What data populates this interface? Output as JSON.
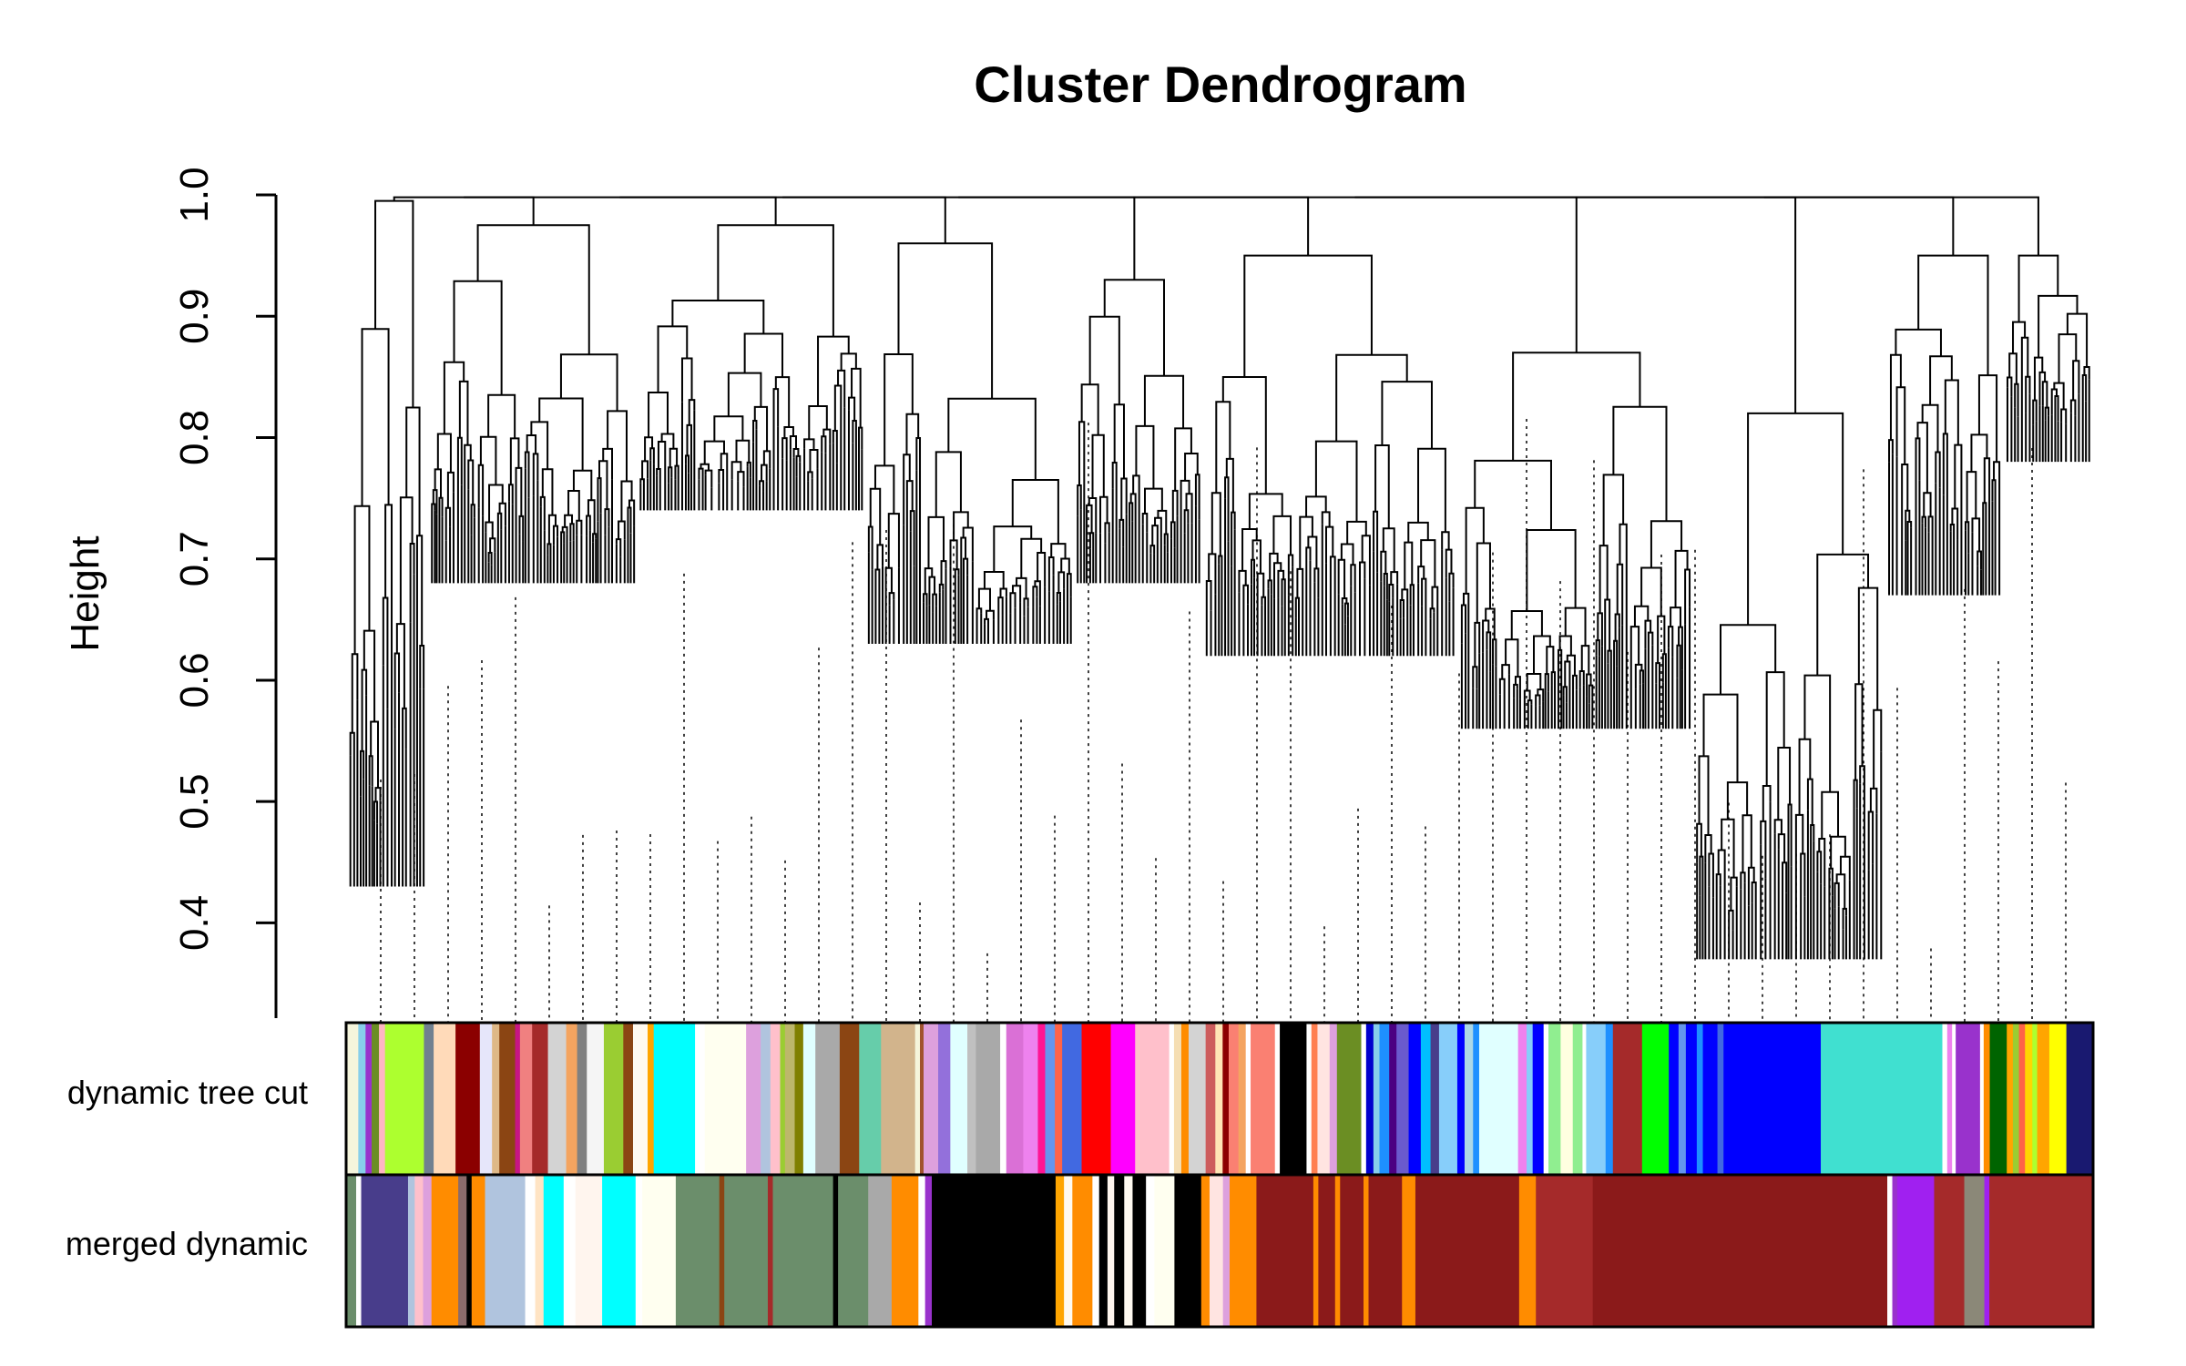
{
  "chart_data": {
    "type": "dendrogram",
    "title": "Cluster Dendrogram",
    "ylabel": "Height",
    "xlabel": "",
    "ylim": [
      0.32,
      1.0
    ],
    "yticks": [
      0.4,
      0.5,
      0.6,
      0.7,
      0.8,
      0.9,
      1.0
    ],
    "ytick_labels": [
      "0.4",
      "0.5",
      "0.6",
      "0.7",
      "0.8",
      "0.9",
      "1.0"
    ],
    "color_rows": [
      {
        "label": "dynamic tree cut",
        "segments": [
          {
            "color": "#f5f5dc",
            "w": 1.0
          },
          {
            "color": "#87ceeb",
            "w": 0.6
          },
          {
            "color": "#9932cc",
            "w": 0.5
          },
          {
            "color": "#6b8e23",
            "w": 0.6
          },
          {
            "color": "#ffb6c1",
            "w": 0.5
          },
          {
            "color": "#adff2f",
            "w": 3.2
          },
          {
            "color": "#708090",
            "w": 0.8
          },
          {
            "color": "#ffdab9",
            "w": 1.8
          },
          {
            "color": "#8b0000",
            "w": 2.0
          },
          {
            "color": "#e6e6fa",
            "w": 1.0
          },
          {
            "color": "#deb887",
            "w": 0.6
          },
          {
            "color": "#8b4513",
            "w": 1.3
          },
          {
            "color": "#c71585",
            "w": 0.4
          },
          {
            "color": "#f08080",
            "w": 1.0
          },
          {
            "color": "#a52a2a",
            "w": 1.3
          },
          {
            "color": "#d3d3d3",
            "w": 1.5
          },
          {
            "color": "#f4a460",
            "w": 0.9
          },
          {
            "color": "#808080",
            "w": 0.8
          },
          {
            "color": "#f5f5f5",
            "w": 1.4
          },
          {
            "color": "#9acd32",
            "w": 1.6
          },
          {
            "color": "#8b4513",
            "w": 0.8
          },
          {
            "color": "#fffaf0",
            "w": 1.2
          },
          {
            "color": "#ffa500",
            "w": 0.5
          },
          {
            "color": "#00ffff",
            "w": 3.4
          },
          {
            "color": "#ffffff",
            "w": 0.8
          },
          {
            "color": "#fffff0",
            "w": 3.4
          },
          {
            "color": "#dda0dd",
            "w": 1.2
          },
          {
            "color": "#b0c4de",
            "w": 0.8
          },
          {
            "color": "#ffc0cb",
            "w": 0.8
          },
          {
            "color": "#9acd32",
            "w": 0.4
          },
          {
            "color": "#bdb76b",
            "w": 0.8
          },
          {
            "color": "#808000",
            "w": 0.7
          },
          {
            "color": "#e0ffff",
            "w": 1.0
          },
          {
            "color": "#a9a9a9",
            "w": 2.0
          },
          {
            "color": "#8b4513",
            "w": 1.6
          },
          {
            "color": "#66cdaa",
            "w": 1.8
          },
          {
            "color": "#d2b48c",
            "w": 2.8
          },
          {
            "color": "#f5f5dc",
            "w": 0.4
          },
          {
            "color": "#a0522d",
            "w": 0.3
          },
          {
            "color": "#dda0dd",
            "w": 1.2
          },
          {
            "color": "#9370db",
            "w": 1.0
          },
          {
            "color": "#e0ffff",
            "w": 1.4
          },
          {
            "color": "#c0c0c0",
            "w": 0.7
          },
          {
            "color": "#a9a9a9",
            "w": 2.0
          },
          {
            "color": "#ffffff",
            "w": 0.5
          },
          {
            "color": "#da70d6",
            "w": 1.4
          },
          {
            "color": "#ee82ee",
            "w": 1.2
          },
          {
            "color": "#ff1493",
            "w": 0.6
          },
          {
            "color": "#6495ed",
            "w": 0.8
          },
          {
            "color": "#ff6347",
            "w": 0.6
          },
          {
            "color": "#4169e1",
            "w": 1.6
          },
          {
            "color": "#ff0000",
            "w": 2.4
          },
          {
            "color": "#ff00ff",
            "w": 2.0
          },
          {
            "color": "#ffc0cb",
            "w": 2.8
          },
          {
            "color": "#ffffff",
            "w": 0.4
          },
          {
            "color": "#f5deb3",
            "w": 0.6
          },
          {
            "color": "#ff8c00",
            "w": 0.6
          },
          {
            "color": "#d3d3d3",
            "w": 1.4
          },
          {
            "color": "#cd5c5c",
            "w": 0.8
          },
          {
            "color": "#ffe4b5",
            "w": 0.6
          },
          {
            "color": "#8b0000",
            "w": 0.5
          },
          {
            "color": "#fa8072",
            "w": 0.8
          },
          {
            "color": "#f4a460",
            "w": 0.6
          },
          {
            "color": "#ffffff",
            "w": 0.4
          },
          {
            "color": "#fa8072",
            "w": 2.0
          },
          {
            "color": "#ffffff",
            "w": 0.4
          },
          {
            "color": "#000000",
            "w": 2.2
          },
          {
            "color": "#ffffff",
            "w": 0.4
          },
          {
            "color": "#ff7f50",
            "w": 0.5
          },
          {
            "color": "#ffe4e1",
            "w": 1.0
          },
          {
            "color": "#dda0dd",
            "w": 0.6
          },
          {
            "color": "#6b8e23",
            "w": 2.0
          },
          {
            "color": "#ffffff",
            "w": 0.4
          },
          {
            "color": "#0000cd",
            "w": 0.6
          },
          {
            "color": "#87ceeb",
            "w": 0.5
          },
          {
            "color": "#1e90ff",
            "w": 0.8
          },
          {
            "color": "#4b0082",
            "w": 0.6
          },
          {
            "color": "#6a5acd",
            "w": 1.0
          },
          {
            "color": "#0000ff",
            "w": 1.0
          },
          {
            "color": "#00bfff",
            "w": 0.8
          },
          {
            "color": "#483d8b",
            "w": 0.7
          },
          {
            "color": "#87cefa",
            "w": 1.5
          },
          {
            "color": "#0000ff",
            "w": 0.6
          },
          {
            "color": "#add8e6",
            "w": 0.7
          },
          {
            "color": "#1e90ff",
            "w": 0.5
          },
          {
            "color": "#e0ffff",
            "w": 3.2
          },
          {
            "color": "#ee82ee",
            "w": 0.7
          },
          {
            "color": "#87cefa",
            "w": 0.5
          },
          {
            "color": "#0000ff",
            "w": 0.9
          },
          {
            "color": "#ffffff",
            "w": 0.4
          },
          {
            "color": "#90ee90",
            "w": 1.0
          },
          {
            "color": "#ffffe0",
            "w": 1.0
          },
          {
            "color": "#90ee90",
            "w": 0.8
          },
          {
            "color": "#ffffff",
            "w": 0.3
          },
          {
            "color": "#87cefa",
            "w": 1.6
          },
          {
            "color": "#1e90ff",
            "w": 0.6
          },
          {
            "color": "#a52a2a",
            "w": 2.4
          },
          {
            "color": "#00ff00",
            "w": 2.2
          },
          {
            "color": "#0000ff",
            "w": 0.8
          },
          {
            "color": "#6495ed",
            "w": 0.6
          },
          {
            "color": "#0000ff",
            "w": 0.9
          },
          {
            "color": "#1e90ff",
            "w": 0.5
          },
          {
            "color": "#0000ff",
            "w": 1.2
          },
          {
            "color": "#4169e1",
            "w": 0.5
          },
          {
            "color": "#0000ff",
            "w": 8.0
          },
          {
            "color": "#40e0d0",
            "w": 10.0
          },
          {
            "color": "#ffffff",
            "w": 0.4
          },
          {
            "color": "#ee82ee",
            "w": 0.4
          },
          {
            "color": "#ffffff",
            "w": 0.3
          },
          {
            "color": "#9932cc",
            "w": 2.0
          },
          {
            "color": "#ffffff",
            "w": 0.3
          },
          {
            "color": "#ff8c00",
            "w": 0.5
          },
          {
            "color": "#006400",
            "w": 1.4
          },
          {
            "color": "#ffa500",
            "w": 0.5
          },
          {
            "color": "#9acd32",
            "w": 0.5
          },
          {
            "color": "#ff6347",
            "w": 0.5
          },
          {
            "color": "#ffd700",
            "w": 0.6
          },
          {
            "color": "#adff2f",
            "w": 0.4
          },
          {
            "color": "#ffa500",
            "w": 1.0
          },
          {
            "color": "#ffff00",
            "w": 1.4
          },
          {
            "color": "#191970",
            "w": 2.2
          }
        ]
      },
      {
        "label": "merged dynamic",
        "segments": [
          {
            "color": "#6b8e6b",
            "w": 0.6
          },
          {
            "color": "#ffffff",
            "w": 0.3
          },
          {
            "color": "#483d8b",
            "w": 2.8
          },
          {
            "color": "#b0c4de",
            "w": 0.4
          },
          {
            "color": "#ffc0cb",
            "w": 0.5
          },
          {
            "color": "#dda0dd",
            "w": 0.5
          },
          {
            "color": "#ff8c00",
            "w": 1.6
          },
          {
            "color": "#8b6b6b",
            "w": 0.5
          },
          {
            "color": "#000000",
            "w": 0.3
          },
          {
            "color": "#ff8c00",
            "w": 0.8
          },
          {
            "color": "#b0c4de",
            "w": 0.6
          },
          {
            "color": "#b0c4de",
            "w": 1.8
          },
          {
            "color": "#ffffff",
            "w": 0.6
          },
          {
            "color": "#ffe4c4",
            "w": 0.5
          },
          {
            "color": "#00ffff",
            "w": 1.2
          },
          {
            "color": "#ffffff",
            "w": 0.7
          },
          {
            "color": "#fff5ee",
            "w": 1.6
          },
          {
            "color": "#00ffff",
            "w": 2.0
          },
          {
            "color": "#ffffff",
            "w": 0.4
          },
          {
            "color": "#fffff0",
            "w": 2.0
          },
          {
            "color": "#6b8e6b",
            "w": 2.6
          },
          {
            "color": "#8b4513",
            "w": 0.3
          },
          {
            "color": "#6b8e6b",
            "w": 2.6
          },
          {
            "color": "#a52a2a",
            "w": 0.3
          },
          {
            "color": "#6b8e6b",
            "w": 3.6
          },
          {
            "color": "#000000",
            "w": 0.3
          },
          {
            "color": "#6b8e6b",
            "w": 1.8
          },
          {
            "color": "#a9a9a9",
            "w": 1.4
          },
          {
            "color": "#ff8c00",
            "w": 1.6
          },
          {
            "color": "#ffffff",
            "w": 0.4
          },
          {
            "color": "#9932cc",
            "w": 0.4
          },
          {
            "color": "#000000",
            "w": 7.4
          },
          {
            "color": "#ffa500",
            "w": 0.5
          },
          {
            "color": "#fffaf0",
            "w": 0.5
          },
          {
            "color": "#ff8c00",
            "w": 1.2
          },
          {
            "color": "#ffffff",
            "w": 0.4
          },
          {
            "color": "#000000",
            "w": 0.5
          },
          {
            "color": "#fff5ee",
            "w": 0.4
          },
          {
            "color": "#000000",
            "w": 0.6
          },
          {
            "color": "#fffaf0",
            "w": 0.5
          },
          {
            "color": "#000000",
            "w": 0.8
          },
          {
            "color": "#ffffff",
            "w": 0.5
          },
          {
            "color": "#fffff0",
            "w": 1.2
          },
          {
            "color": "#000000",
            "w": 1.6
          },
          {
            "color": "#ff8c00",
            "w": 0.5
          },
          {
            "color": "#ffe4e1",
            "w": 0.8
          },
          {
            "color": "#dda0dd",
            "w": 0.4
          },
          {
            "color": "#ff8c00",
            "w": 1.6
          },
          {
            "color": "#8b1a1a",
            "w": 3.4
          },
          {
            "color": "#ff8c00",
            "w": 0.3
          },
          {
            "color": "#8b1a1a",
            "w": 1.0
          },
          {
            "color": "#ff8c00",
            "w": 0.3
          },
          {
            "color": "#8b1a1a",
            "w": 1.4
          },
          {
            "color": "#ff8c00",
            "w": 0.3
          },
          {
            "color": "#8b1a1a",
            "w": 2.0
          },
          {
            "color": "#ff8c00",
            "w": 0.8
          },
          {
            "color": "#8b1a1a",
            "w": 6.2
          },
          {
            "color": "#ff8c00",
            "w": 1.0
          },
          {
            "color": "#a52a2a",
            "w": 3.4
          },
          {
            "color": "#8b1a1a",
            "w": 17.6
          },
          {
            "color": "#ffffff",
            "w": 0.3
          },
          {
            "color": "#9932cc",
            "w": 0.3
          },
          {
            "color": "#a020f0",
            "w": 2.2
          },
          {
            "color": "#a52a2a",
            "w": 1.8
          },
          {
            "color": "#8b8878",
            "w": 1.2
          },
          {
            "color": "#a020f0",
            "w": 0.3
          },
          {
            "color": "#a52a2a",
            "w": 6.2
          }
        ]
      }
    ]
  }
}
